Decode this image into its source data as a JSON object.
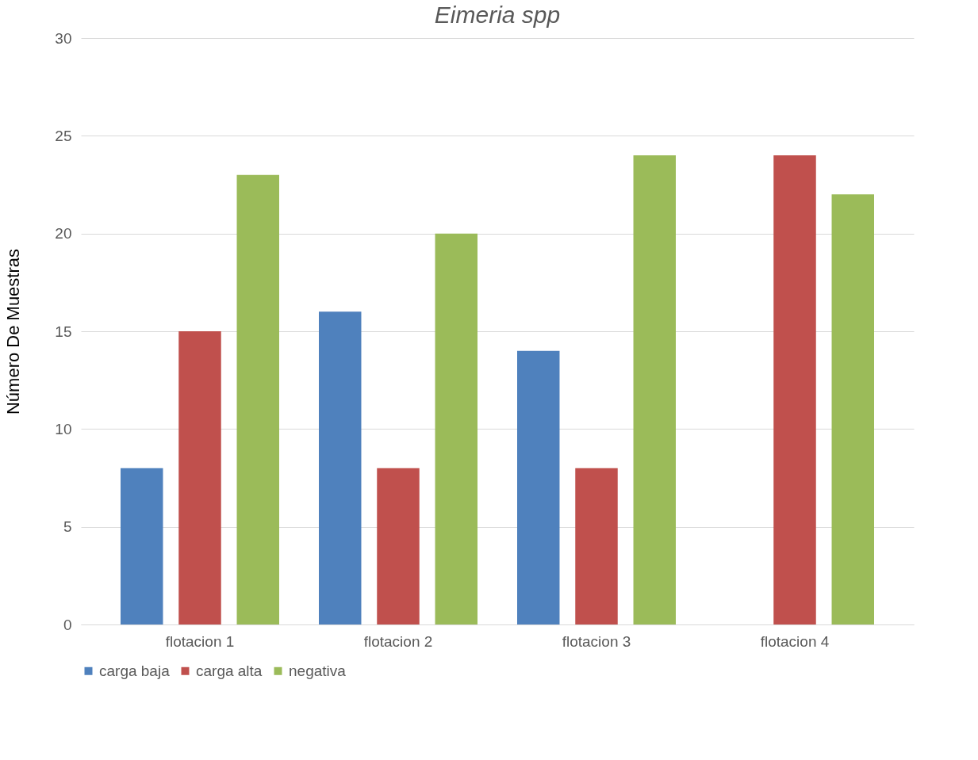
{
  "chart_data": {
    "type": "bar",
    "title": "Eimeria spp",
    "ylabel": "Número De Muestras",
    "categories": [
      "flotacion 1",
      "flotacion 2",
      "flotacion 3",
      "flotacion 4"
    ],
    "series": [
      {
        "name": "carga baja",
        "color": "#4f81bd",
        "values": [
          8,
          16,
          14,
          0
        ]
      },
      {
        "name": "carga alta",
        "color": "#c0504d",
        "values": [
          15,
          8,
          8,
          24
        ]
      },
      {
        "name": "negativa",
        "color": "#9bbb59",
        "values": [
          23,
          20,
          24,
          22
        ]
      }
    ],
    "ylim": [
      0,
      30
    ],
    "yticks": [
      0,
      5,
      10,
      15,
      20,
      25,
      30
    ],
    "grid": "y",
    "legend": "bottom"
  }
}
